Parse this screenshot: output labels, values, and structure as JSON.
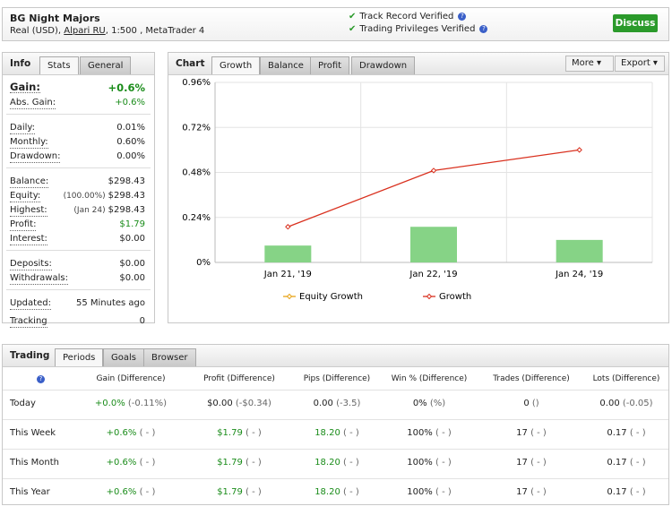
{
  "header": {
    "title": "BG Night Majors",
    "account": "Real (USD),",
    "broker": "Alpari RU",
    "details": ", 1:500 , MetaTrader 4",
    "verified": [
      "Track Record Verified",
      "Trading Privileges Verified"
    ],
    "button": "Discuss"
  },
  "info": {
    "title": "Info",
    "tabs": [
      "Stats",
      "General"
    ],
    "groups": [
      [
        {
          "label": "Gain:",
          "value": "+0.6%",
          "tone": "positive"
        },
        {
          "label": "Abs. Gain:",
          "value": "+0.6%",
          "tone": "positive"
        }
      ],
      [
        {
          "label": "Daily:",
          "value": "0.01%"
        },
        {
          "label": "Monthly:",
          "value": "0.60%"
        },
        {
          "label": "Drawdown:",
          "value": "0.00%"
        }
      ],
      [
        {
          "label": "Balance:",
          "value": "$298.43"
        },
        {
          "label": "Equity:",
          "note": "(100.00%)",
          "value": "$298.43"
        },
        {
          "label": "Highest:",
          "note": "(Jan 24)",
          "value": "$298.43"
        },
        {
          "label": "Profit:",
          "value": "$1.79",
          "tone": "positive"
        },
        {
          "label": "Interest:",
          "value": "$0.00"
        }
      ],
      [
        {
          "label": "Deposits:",
          "value": "$0.00"
        },
        {
          "label": "Withdrawals:",
          "value": "$0.00"
        }
      ],
      [
        {
          "label": "Updated:",
          "value": "55 Minutes ago"
        },
        {
          "label": "Tracking",
          "value": "0"
        }
      ]
    ]
  },
  "chart_panel": {
    "title": "Chart",
    "tabs": [
      "Growth",
      "Balance",
      "Profit",
      "Drawdown"
    ],
    "buttons": [
      "More",
      "Export"
    ]
  },
  "chart_data": {
    "type": "combo",
    "categories": [
      "Jan 21, '19",
      "Jan 22, '19",
      "Jan 24, '19"
    ],
    "series": [
      {
        "name": "Equity Growth",
        "color": "#e8a317",
        "values": [
          null,
          null,
          null
        ]
      },
      {
        "name": "Growth",
        "color": "#d9301e",
        "values": [
          0.19,
          0.49,
          0.6
        ]
      }
    ],
    "bars": {
      "color": "#86d386",
      "values": [
        0.09,
        0.19,
        0.12
      ]
    },
    "ylim": [
      0,
      0.96
    ],
    "yticks": [
      {
        "value": 0,
        "label": "0%"
      },
      {
        "value": 0.24,
        "label": "0.24%"
      },
      {
        "value": 0.48,
        "label": "0.48%"
      },
      {
        "value": 0.72,
        "label": "0.72%"
      },
      {
        "value": 0.96,
        "label": "0.96%"
      }
    ],
    "grid": true
  },
  "trading": {
    "title": "Trading",
    "tabs": [
      "Periods",
      "Goals",
      "Browser"
    ],
    "columns": [
      "Gain (Difference)",
      "Profit (Difference)",
      "Pips (Difference)",
      "Win % (Difference)",
      "Trades (Difference)",
      "Lots (Difference)"
    ],
    "rows": [
      {
        "label": "Today",
        "cells": [
          {
            "value": "+0.0%",
            "diff": "(-0.11%)",
            "tone": "positive"
          },
          {
            "value": "$0.00",
            "diff": "(-$0.34)"
          },
          {
            "value": "0.00",
            "diff": "(-3.5)"
          },
          {
            "value": "0%",
            "diff": "(%)"
          },
          {
            "value": "0",
            "diff": "()"
          },
          {
            "value": "0.00",
            "diff": "(-0.05)"
          }
        ]
      },
      {
        "label": "This Week",
        "cells": [
          {
            "value": "+0.6%",
            "diff": "( - )",
            "tone": "positive"
          },
          {
            "value": "$1.79",
            "diff": "( - )",
            "tone": "positive"
          },
          {
            "value": "18.20",
            "diff": "( - )",
            "tone": "positive"
          },
          {
            "value": "100%",
            "diff": "( - )"
          },
          {
            "value": "17",
            "diff": "( - )"
          },
          {
            "value": "0.17",
            "diff": "( - )"
          }
        ]
      },
      {
        "label": "This Month",
        "cells": [
          {
            "value": "+0.6%",
            "diff": "( - )",
            "tone": "positive"
          },
          {
            "value": "$1.79",
            "diff": "( - )",
            "tone": "positive"
          },
          {
            "value": "18.20",
            "diff": "( - )",
            "tone": "positive"
          },
          {
            "value": "100%",
            "diff": "( - )"
          },
          {
            "value": "17",
            "diff": "( - )"
          },
          {
            "value": "0.17",
            "diff": "( - )"
          }
        ]
      },
      {
        "label": "This Year",
        "cells": [
          {
            "value": "+0.6%",
            "diff": "( - )",
            "tone": "positive"
          },
          {
            "value": "$1.79",
            "diff": "( - )",
            "tone": "positive"
          },
          {
            "value": "18.20",
            "diff": "( - )",
            "tone": "positive"
          },
          {
            "value": "100%",
            "diff": "( - )"
          },
          {
            "value": "17",
            "diff": "( - )"
          },
          {
            "value": "0.17",
            "diff": "( - )"
          }
        ]
      }
    ]
  }
}
